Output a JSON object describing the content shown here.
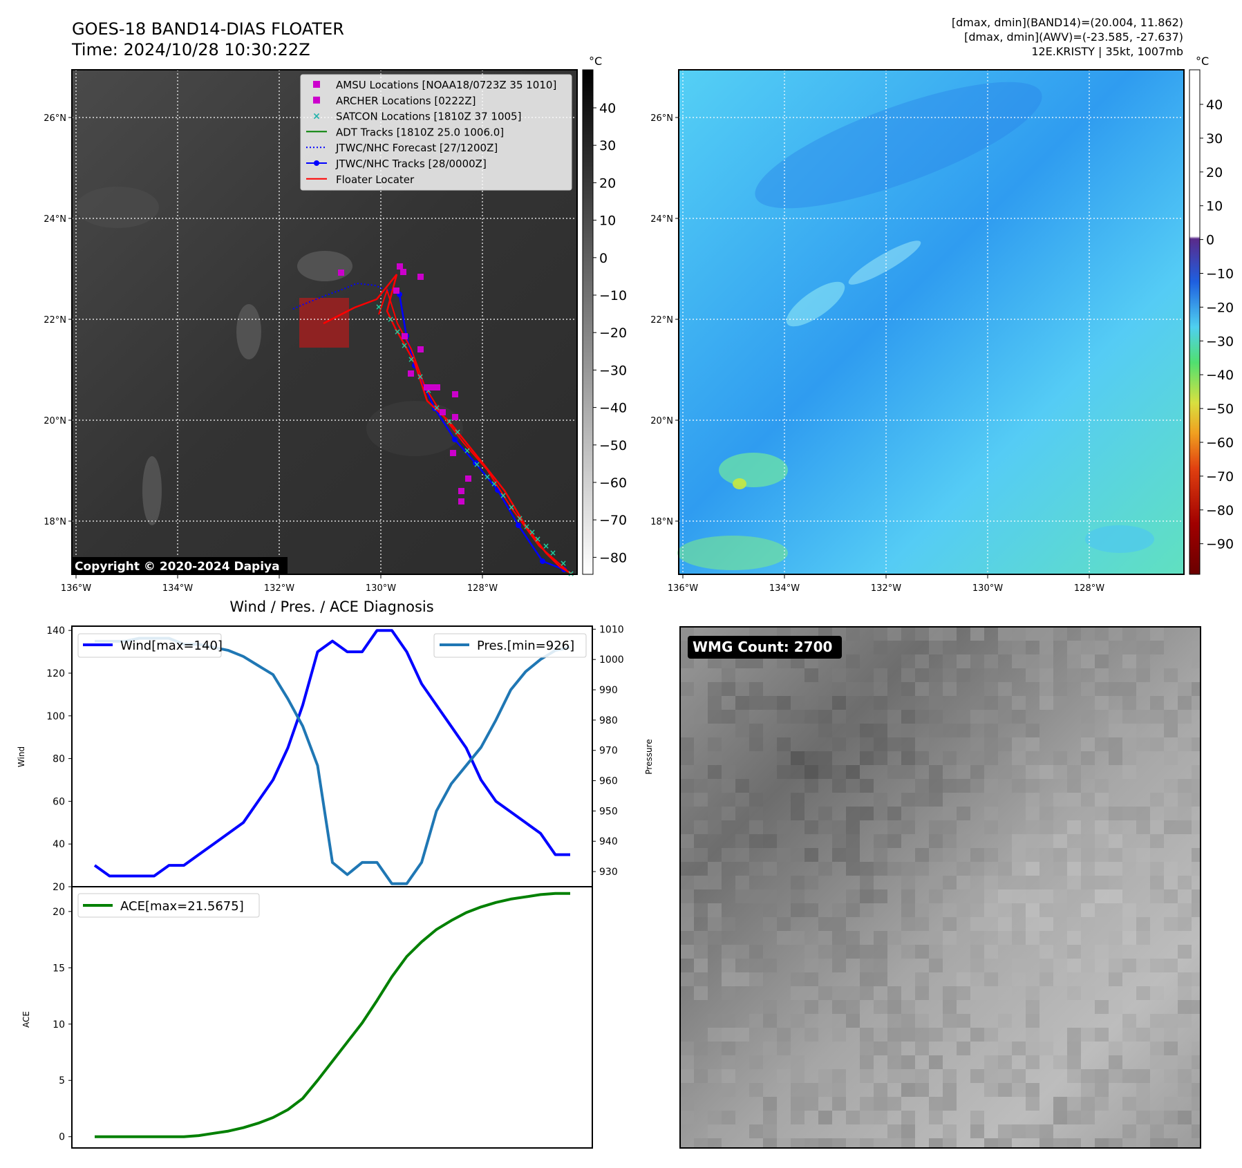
{
  "header": {
    "title_line1": "GOES-18 BAND14-DIAS FLOATER",
    "title_line2": "Time: 2024/10/28 10:30:22Z",
    "info_line1": "[dmax, dmin](BAND14)=(20.004, 11.862)",
    "info_line2": "[dmax, dmin](AWV)=(-23.585, -27.637)",
    "info_line3": "12E.KRISTY | 35kt, 1007mb"
  },
  "colorbar_unit": "°C",
  "copyright": "Copyright © 2020-2024 Dapiya",
  "wmg_count": "WMG Count: 2700",
  "map": {
    "lon_ticks": [
      "136°W",
      "134°W",
      "132°W",
      "130°W",
      "128°W"
    ],
    "lat_ticks": [
      "26°N",
      "24°N",
      "22°N",
      "20°N",
      "18°N"
    ],
    "gray_colorbar_ticks": [
      "40",
      "30",
      "20",
      "10",
      "0",
      "−10",
      "−20",
      "−30",
      "−40",
      "−50",
      "−60",
      "−70",
      "−80"
    ],
    "color_colorbar_ticks": [
      "40",
      "30",
      "20",
      "10",
      "0",
      "−10",
      "−20",
      "−30",
      "−40",
      "−50",
      "−60",
      "−70",
      "−80",
      "−90"
    ],
    "legend": [
      {
        "label": "AMSU Locations [NOAA18/0723Z 35 1010]",
        "marker": "square",
        "color": "#cc00cc"
      },
      {
        "label": "ARCHER Locations [0222Z]",
        "marker": "square",
        "color": "#cc00cc"
      },
      {
        "label": "SATCON Locations [1810Z 37 1005]",
        "marker": "x",
        "color": "#20b2aa"
      },
      {
        "label": "ADT Tracks [1810Z 25.0 1006.0]",
        "marker": "line",
        "color": "#008000"
      },
      {
        "label": "JTWC/NHC Forecast [27/1200Z]",
        "marker": "dotted",
        "color": "#0000ff"
      },
      {
        "label": "JTWC/NHC Tracks [28/0000Z]",
        "marker": "line-dot",
        "color": "#0000ff"
      },
      {
        "label": "Floater Locater",
        "marker": "line",
        "color": "#ff0000"
      }
    ]
  },
  "chart_data": [
    {
      "type": "line",
      "title": "Wind / Pres. / ACE Diagnosis",
      "ylabel": "Wind",
      "y2label": "Pressure",
      "ylim": [
        20,
        142
      ],
      "y2lim": [
        925,
        1011
      ],
      "yticks": [
        "140",
        "120",
        "100",
        "80",
        "60",
        "40",
        "20"
      ],
      "y2ticks": [
        "1010",
        "1000",
        "990",
        "980",
        "970",
        "960",
        "950",
        "940",
        "930"
      ],
      "series": [
        {
          "name": "Wind[max=140]",
          "axis": "left",
          "color": "#0000ff",
          "values": [
            30,
            25,
            25,
            25,
            25,
            30,
            30,
            35,
            40,
            45,
            50,
            60,
            70,
            85,
            105,
            130,
            135,
            130,
            130,
            140,
            140,
            130,
            115,
            105,
            95,
            85,
            70,
            60,
            55,
            50,
            45,
            35,
            35
          ]
        },
        {
          "name": "Pres.[min=926]",
          "axis": "right",
          "color": "#1f77b4",
          "values": [
            1006,
            1006,
            1006,
            1007,
            1007,
            1007,
            1005,
            1005,
            1004,
            1003,
            1001,
            998,
            995,
            987,
            978,
            965,
            933,
            929,
            933,
            933,
            926,
            926,
            933,
            950,
            959,
            965,
            971,
            980,
            990,
            996,
            1000,
            1003,
            1004
          ]
        }
      ]
    },
    {
      "type": "line",
      "ylabel": "ACE",
      "ylim": [
        -1,
        22.2
      ],
      "yticks": [
        "0",
        "5",
        "10",
        "15",
        "20"
      ],
      "series": [
        {
          "name": "ACE[max=21.5675]",
          "color": "#008000",
          "values": [
            0,
            0,
            0,
            0,
            0,
            0,
            0,
            0.1,
            0.3,
            0.5,
            0.8,
            1.2,
            1.7,
            2.4,
            3.4,
            5.0,
            6.7,
            8.4,
            10.1,
            12.1,
            14.2,
            16.0,
            17.3,
            18.4,
            19.2,
            19.9,
            20.4,
            20.8,
            21.1,
            21.3,
            21.5,
            21.6,
            21.6
          ]
        }
      ]
    }
  ]
}
